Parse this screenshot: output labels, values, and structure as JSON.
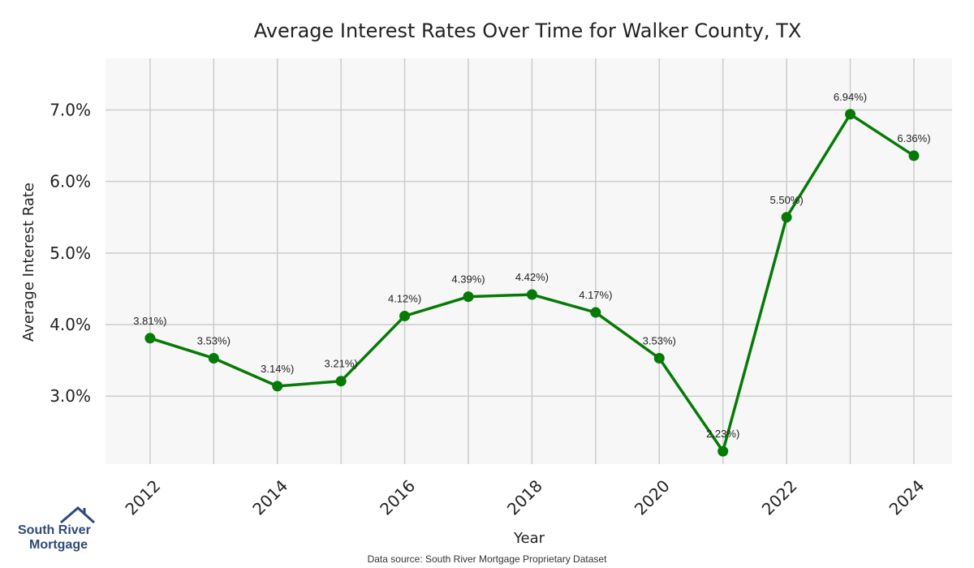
{
  "chart_data": {
    "type": "line",
    "title": "Average Interest Rates Over Time for Walker County, TX",
    "xlabel": "Year",
    "ylabel": "Average Interest Rate",
    "x": [
      2012,
      2013,
      2014,
      2015,
      2016,
      2017,
      2018,
      2019,
      2020,
      2021,
      2022,
      2023,
      2024
    ],
    "values": [
      3.81,
      3.53,
      3.14,
      3.21,
      4.12,
      4.39,
      4.42,
      4.17,
      3.53,
      2.23,
      5.5,
      6.94,
      6.36
    ],
    "point_labels": [
      "3.81%)",
      "3.53%)",
      "3.14%)",
      "3.21%)",
      "4.12%)",
      "4.39%)",
      "4.42%)",
      "4.17%)",
      "3.53%)",
      "2.23%)",
      "5.50%)",
      "6.94%)",
      "6.36%)"
    ],
    "x_ticks": [
      "2012",
      "2014",
      "2016",
      "2018",
      "2020",
      "2022",
      "2024"
    ],
    "y_ticks": [
      "3.0%",
      "4.0%",
      "5.0%",
      "6.0%",
      "7.0%"
    ],
    "y_tick_values": [
      3,
      4,
      5,
      6,
      7
    ],
    "x_tick_values": [
      2012,
      2014,
      2016,
      2018,
      2020,
      2022,
      2024
    ],
    "xlim": [
      2011.3,
      2024.6
    ],
    "ylim": [
      2.05,
      7.72
    ],
    "grid": true,
    "line_color": "#067a06",
    "background_color": "#f7f7f7",
    "grid_color": "#cccccc"
  },
  "footer": {
    "source": "Data source: South River Mortgage Proprietary Dataset"
  },
  "logo": {
    "line1": "South River",
    "line2": "Mortgage"
  }
}
